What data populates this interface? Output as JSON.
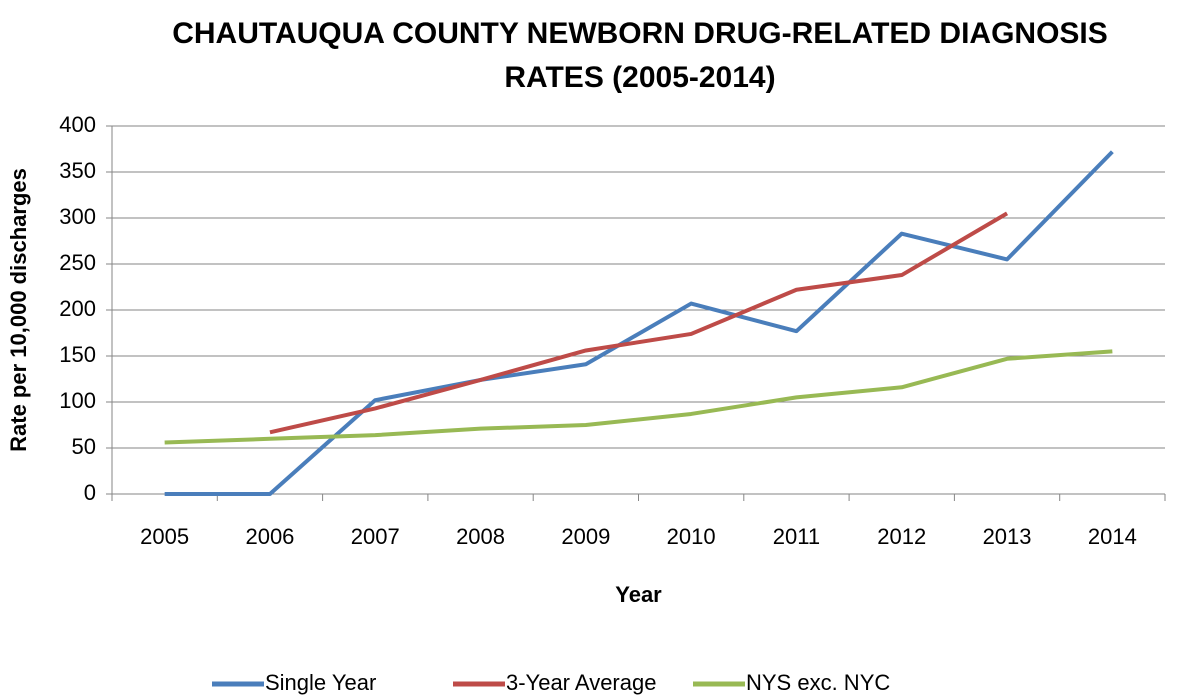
{
  "chart_data": {
    "type": "line",
    "title": "CHAUTAUQUA COUNTY NEWBORN DRUG-RELATED DIAGNOSIS RATES (2005-2014)",
    "x_label": "Year",
    "y_label": "Rate per 10,000 discharges",
    "categories": [
      "2005",
      "2006",
      "2007",
      "2008",
      "2009",
      "2010",
      "2011",
      "2012",
      "2013",
      "2014"
    ],
    "series": [
      {
        "name": "Single Year",
        "color": "#4a7ebb",
        "values": [
          0,
          0,
          102,
          124,
          141,
          207,
          177,
          283,
          255,
          372
        ]
      },
      {
        "name": "3-Year Average",
        "color": "#be4b48",
        "values": [
          null,
          67,
          93,
          124,
          156,
          174,
          222,
          238,
          305,
          null
        ]
      },
      {
        "name": "NYS exc. NYC",
        "color": "#98b954",
        "values": [
          56,
          60,
          64,
          71,
          75,
          87,
          105,
          116,
          147,
          155
        ]
      }
    ],
    "ylim": [
      0,
      400
    ],
    "yticks": [
      0,
      50,
      100,
      150,
      200,
      250,
      300,
      350,
      400
    ],
    "grid": true,
    "legend": "bottom"
  }
}
